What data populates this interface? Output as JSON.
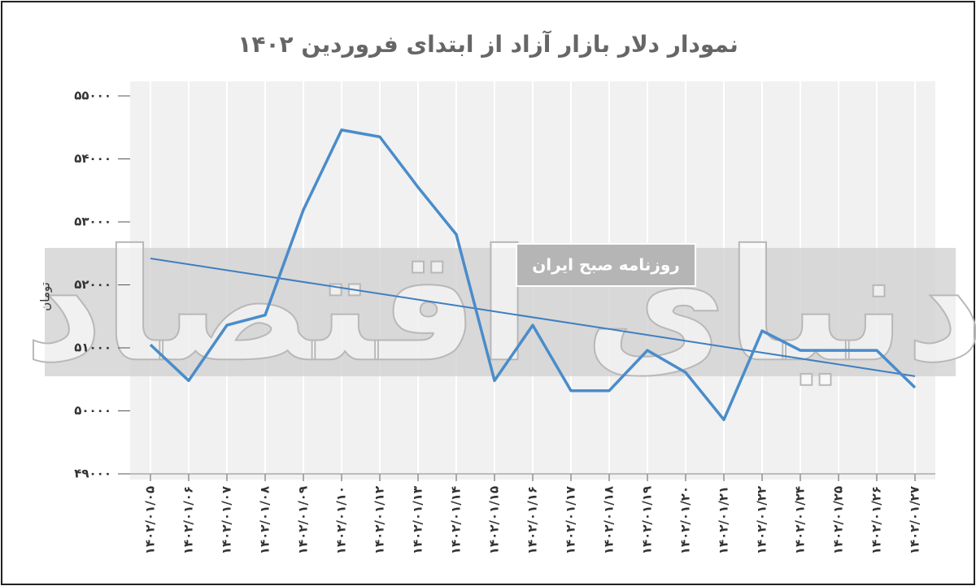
{
  "chart_data": {
    "type": "line",
    "title": "نمودار دلار بازار آزاد از ابتدای فروردین ۱۴۰۲",
    "y_label": "تومان",
    "watermark": "دنیای اقتصاد",
    "badge": "روزنامه صبح ایران",
    "categories": [
      "۱۴۰۲/۰۱/۰۵",
      "۱۴۰۲/۰۱/۰۶",
      "۱۴۰۲/۰۱/۰۷",
      "۱۴۰۲/۰۱/۰۸",
      "۱۴۰۲/۰۱/۰۹",
      "۱۴۰۲/۰۱/۱۰",
      "۱۴۰۲/۰۱/۱۲",
      "۱۴۰۲/۰۱/۱۳",
      "۱۴۰۲/۰۱/۱۴",
      "۱۴۰۲/۰۱/۱۵",
      "۱۴۰۲/۰۱/۱۶",
      "۱۴۰۲/۰۱/۱۷",
      "۱۴۰۲/۰۱/۱۸",
      "۱۴۰۲/۰۱/۱۹",
      "۱۴۰۲/۰۱/۲۰",
      "۱۴۰۲/۰۱/۲۱",
      "۱۴۰۲/۰۱/۲۲",
      "۱۴۰۲/۰۱/۲۴",
      "۱۴۰۲/۰۱/۲۵",
      "۱۴۰۲/۰۱/۲۶",
      "۱۴۰۲/۰۱/۲۷"
    ],
    "values": [
      51050,
      50480,
      51360,
      51520,
      53190,
      54460,
      54350,
      53550,
      52800,
      50480,
      51360,
      50320,
      50320,
      50960,
      50610,
      49860,
      51270,
      50960,
      50960,
      50960,
      50370
    ],
    "color": "#4a8cca",
    "trendline": true,
    "trend_color": "#3f7fbf",
    "ylim": [
      49000,
      55000
    ],
    "yticks": [
      {
        "value": 49000,
        "label": "۴۹۰۰۰"
      },
      {
        "value": 50000,
        "label": "۵۰۰۰۰"
      },
      {
        "value": 51000,
        "label": "۵۱۰۰۰"
      },
      {
        "value": 52000,
        "label": "۵۲۰۰۰"
      },
      {
        "value": 53000,
        "label": "۵۳۰۰۰"
      },
      {
        "value": 54000,
        "label": "۵۴۰۰۰"
      },
      {
        "value": 55000,
        "label": "۵۵۰۰۰"
      }
    ],
    "grid": true
  }
}
